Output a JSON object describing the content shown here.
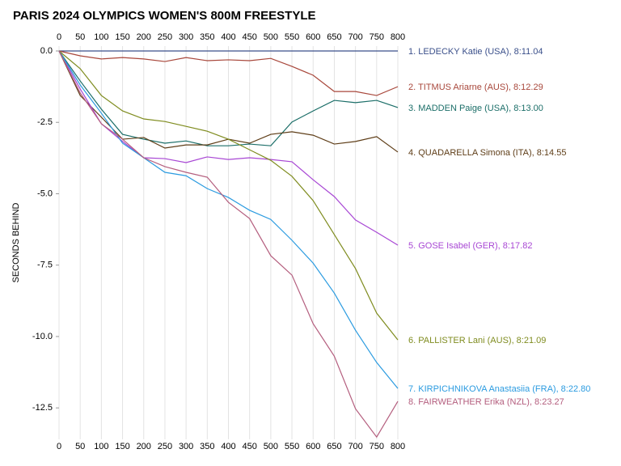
{
  "chart_data": {
    "type": "line",
    "title": "PARIS 2024 OLYMPICS WOMEN'S 800M FREESTYLE",
    "y_label": "SECONDS BEHIND",
    "x": [
      0,
      50,
      100,
      150,
      200,
      250,
      300,
      350,
      400,
      450,
      500,
      550,
      600,
      650,
      700,
      750,
      800
    ],
    "xlim": [
      0,
      800
    ],
    "xticks": [
      0,
      50,
      100,
      150,
      200,
      250,
      300,
      350,
      400,
      450,
      500,
      550,
      600,
      650,
      700,
      750,
      800
    ],
    "ylim": [
      -13.6,
      0.17
    ],
    "yticks": [
      {
        "value": 0,
        "label": "0.0"
      },
      -2.5,
      {
        "value": -5,
        "label": "-5.0"
      },
      -7.5,
      {
        "value": -10,
        "label": "-10.0"
      },
      -12.5
    ],
    "grid": "x",
    "series": [
      {
        "name": "1. LEDECKY Katie (USA), 8:11.04",
        "color": "#3a4f8a",
        "values": [
          0,
          0,
          0,
          0,
          0,
          0,
          0,
          0,
          0,
          0,
          0,
          0,
          0,
          0,
          0,
          0,
          0
        ]
      },
      {
        "name": "2. TITMUS Ariarne (AUS), 8:12.29",
        "color": "#a8473b",
        "values": [
          0,
          -0.17,
          -0.28,
          -0.23,
          -0.28,
          -0.37,
          -0.23,
          -0.34,
          -0.31,
          -0.34,
          -0.26,
          -0.54,
          -0.85,
          -1.42,
          -1.42,
          -1.56,
          -1.25
        ]
      },
      {
        "name": "3. MADDEN Paige (USA), 8:13.00",
        "color": "#1b6e68",
        "values": [
          0,
          -1.05,
          -2.04,
          -2.92,
          -3.09,
          -3.23,
          -3.15,
          -3.32,
          -3.32,
          -3.26,
          -3.32,
          -2.49,
          -2.1,
          -1.73,
          -1.81,
          -1.73,
          -1.98
        ]
      },
      {
        "name": "4. QUADARELLA Simona (ITA), 8:14.55",
        "color": "#5e3d17",
        "values": [
          0,
          -1.56,
          -2.32,
          -3.09,
          -3.03,
          -3.4,
          -3.29,
          -3.29,
          -3.09,
          -3.23,
          -2.92,
          -2.83,
          -2.95,
          -3.26,
          -3.17,
          -3,
          -3.54
        ]
      },
      {
        "name": "5. GOSE Isabel (GER), 8:17.82",
        "color": "#a847d4",
        "values": [
          0,
          -1.33,
          -2.55,
          -3.17,
          -3.74,
          -3.77,
          -3.91,
          -3.71,
          -3.8,
          -3.74,
          -3.8,
          -3.88,
          -4.51,
          -5.1,
          -5.92,
          -6.35,
          -6.8
        ]
      },
      {
        "name": "6. PALLISTER Lani (AUS), 8:21.09",
        "color": "#7f8c1f",
        "values": [
          0,
          -0.62,
          -1.56,
          -2.1,
          -2.38,
          -2.47,
          -2.64,
          -2.81,
          -3.09,
          -3.46,
          -3.83,
          -4.39,
          -5.24,
          -6.43,
          -7.62,
          -9.18,
          -10.12
        ]
      },
      {
        "name": "7. KIRPICHNIKOVA Anastasiia (FRA), 8:22.80",
        "color": "#2b9be0",
        "values": [
          0,
          -1.19,
          -2.18,
          -3.23,
          -3.74,
          -4.25,
          -4.37,
          -4.82,
          -5.13,
          -5.58,
          -5.9,
          -6.63,
          -7.43,
          -8.48,
          -9.78,
          -10.91,
          -11.82
        ]
      },
      {
        "name": "8. FAIRWEATHER Erika (NZL), 8:23.27",
        "color": "#b45e7e",
        "values": [
          0,
          -1.47,
          -2.55,
          -3.09,
          -3.74,
          -4.05,
          -4.25,
          -4.42,
          -5.3,
          -5.87,
          -7.17,
          -7.85,
          -9.55,
          -10.69,
          -12.53,
          -13.52,
          -12.27
        ]
      }
    ]
  }
}
